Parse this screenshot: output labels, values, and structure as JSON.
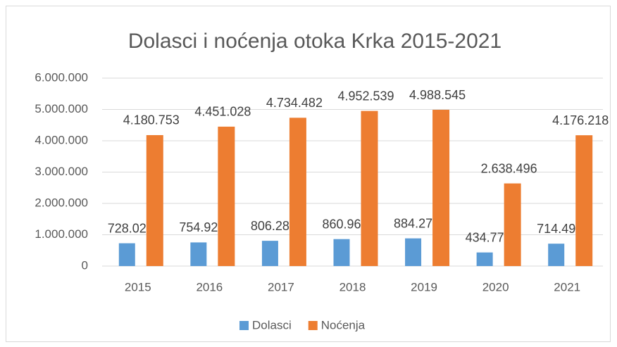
{
  "chart_data": {
    "type": "bar",
    "title": "Dolasci i noćenja otoka Krka 2015-2021",
    "categories": [
      "2015",
      "2016",
      "2017",
      "2018",
      "2019",
      "2020",
      "2021"
    ],
    "series": [
      {
        "name": "Dolasci",
        "color": "#5b9bd5",
        "values": [
          728025,
          754929,
          806285,
          860961,
          884276,
          434777,
          714498
        ],
        "value_labels": [
          "728.025",
          "754.929",
          "806.285",
          "860.961",
          "884.276",
          "434.777",
          "714.498"
        ]
      },
      {
        "name": "Noćenja",
        "color": "#ed7d31",
        "values": [
          4180753,
          4451028,
          4734482,
          4952539,
          4988545,
          2638496,
          4176218
        ],
        "value_labels": [
          "4.180.753",
          "4.451.028",
          "4.734.482",
          "4.952.539",
          "4.988.545",
          "2.638.496",
          "4.176.218"
        ]
      }
    ],
    "ylim": [
      0,
      6000000
    ],
    "yticks": [
      0,
      {
        "value": 1000000,
        "label": "1.000.000"
      },
      {
        "value": 2000000,
        "label": "2.000.000"
      },
      {
        "value": 3000000,
        "label": "3.000.000"
      },
      {
        "value": 4000000,
        "label": "4.000.000"
      },
      {
        "value": 5000000,
        "label": "5.000.000"
      },
      {
        "value": 6000000,
        "label": "6.000.000"
      }
    ],
    "grid": true,
    "legend": "bottom"
  }
}
